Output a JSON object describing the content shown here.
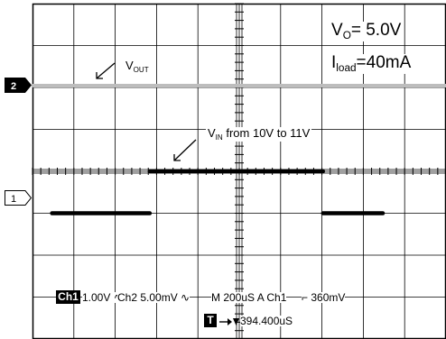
{
  "annotations": {
    "vo_main": "V",
    "vo_sub": "O",
    "vo_value": "= 5.0V",
    "iload_main": "I",
    "iload_sub": "load",
    "iload_value": "=40mA",
    "vout_main": "V",
    "vout_sub": "OUT",
    "vin_main": "V",
    "vin_sub": "IN",
    "vin_value": " from 10V to 11V"
  },
  "markers": {
    "ch2": "2",
    "ch1": "1"
  },
  "status": {
    "ch1_label": "Ch1",
    "ch1_scale": "1.00V",
    "ch2_scale": "Ch2  5.00mV",
    "timebase": "M 200uS  A  Ch1",
    "trigger_level": "360mV",
    "trigger_label": "T",
    "trigger_delay": "394.400uS"
  },
  "icons": {
    "bandwidth": "bandwidth-limit-icon",
    "trigger_edge": "rising-edge-icon",
    "trigger_pointer": "trigger-position-icon"
  },
  "colors": {
    "trace_ch1": "#000000",
    "trace_ch2": "#bdbdbd",
    "grid": "#000000"
  },
  "chart_data": {
    "type": "line",
    "title": "",
    "xlabel": "",
    "ylabel": "",
    "x_unit": "us",
    "x_divisions": 10,
    "y_divisions": 8,
    "xlim": [
      -394.4,
      1605.6
    ],
    "grid": true,
    "series": [
      {
        "name": "",
        "channel": "Ch2",
        "volts_per_div": "5.00mV",
        "x": [
          -394.4,
          1605.6
        ],
        "y": [
          0,
          0
        ]
      },
      {
        "name": "",
        "channel": "Ch1",
        "volts_per_div": "1.00V",
        "x": [
          -300,
          172.6,
          172.6,
          1010.6,
          1010.6,
          1300
        ],
        "y": [
          10,
          10,
          11,
          11,
          10,
          10
        ]
      }
    ]
  }
}
